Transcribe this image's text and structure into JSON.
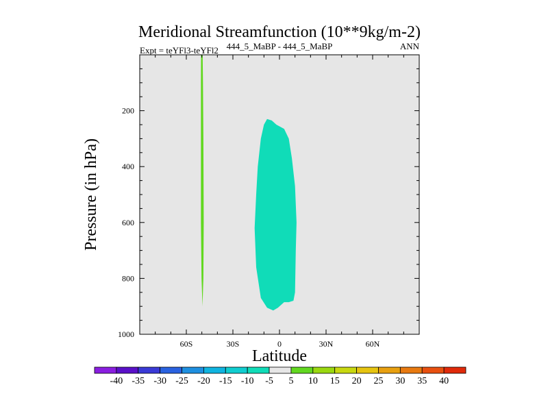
{
  "chart_data": {
    "type": "heatmap",
    "title": "Meridional Streamfunction (10**9kg/m-2)",
    "subtitle_left": "Expt = teYFl3-teYFl2",
    "subtitle_center": "444_5_MaBP - 444_5_MaBP",
    "subtitle_right": "ANN",
    "xlabel": "Latitude",
    "ylabel": "Pressure (in hPa)",
    "xlim": [
      -90,
      90
    ],
    "ylim": [
      1000,
      0
    ],
    "x_ticks": [
      -60,
      -30,
      0,
      30,
      60
    ],
    "x_tick_labels": [
      "60S",
      "30S",
      "0",
      "30N",
      "60N"
    ],
    "y_ticks": [
      200,
      400,
      600,
      800,
      1000
    ],
    "y_tick_labels": [
      "200",
      "400",
      "600",
      "800",
      "1000"
    ],
    "background_color": "#e6e6e6",
    "colorbar": {
      "labels": [
        "-40",
        "-35",
        "-30",
        "-25",
        "-20",
        "-15",
        "-10",
        "-5",
        "5",
        "10",
        "15",
        "20",
        "25",
        "30",
        "35",
        "40"
      ],
      "colors": [
        "#8a1ee0",
        "#5a10c8",
        "#3a3ad6",
        "#2a62e0",
        "#1e8fe0",
        "#10b4e0",
        "#10cdd0",
        "#10dcb8",
        "#e6e6e6",
        "#62d820",
        "#9ad810",
        "#c8d810",
        "#e6c410",
        "#e8a010",
        "#e87a10",
        "#e85010",
        "#e02a0a"
      ]
    },
    "regions": [
      {
        "name": "positive-5-to-10",
        "color": "#62d820",
        "outline": [
          [
            -50.5,
            0
          ],
          [
            -49.5,
            0
          ],
          [
            -49.3,
            100
          ],
          [
            -49.0,
            300
          ],
          [
            -48.8,
            600
          ],
          [
            -49.0,
            800
          ],
          [
            -49.6,
            900
          ],
          [
            -50.2,
            800
          ],
          [
            -50.6,
            600
          ],
          [
            -50.6,
            300
          ],
          [
            -50.6,
            100
          ]
        ]
      },
      {
        "name": "negative-5-to-10",
        "color": "#10dcb8",
        "outline": [
          [
            -8,
            230
          ],
          [
            -5,
            235
          ],
          [
            -2,
            250
          ],
          [
            3,
            265
          ],
          [
            6,
            300
          ],
          [
            8,
            370
          ],
          [
            10,
            470
          ],
          [
            11,
            600
          ],
          [
            10.5,
            700
          ],
          [
            10,
            850
          ],
          [
            9,
            880
          ],
          [
            6,
            885
          ],
          [
            3,
            885
          ],
          [
            -1,
            905
          ],
          [
            -4,
            915
          ],
          [
            -8,
            905
          ],
          [
            -12,
            870
          ],
          [
            -15,
            760
          ],
          [
            -16,
            620
          ],
          [
            -15,
            500
          ],
          [
            -14,
            400
          ],
          [
            -12,
            300
          ],
          [
            -10,
            250
          ]
        ]
      }
    ]
  }
}
